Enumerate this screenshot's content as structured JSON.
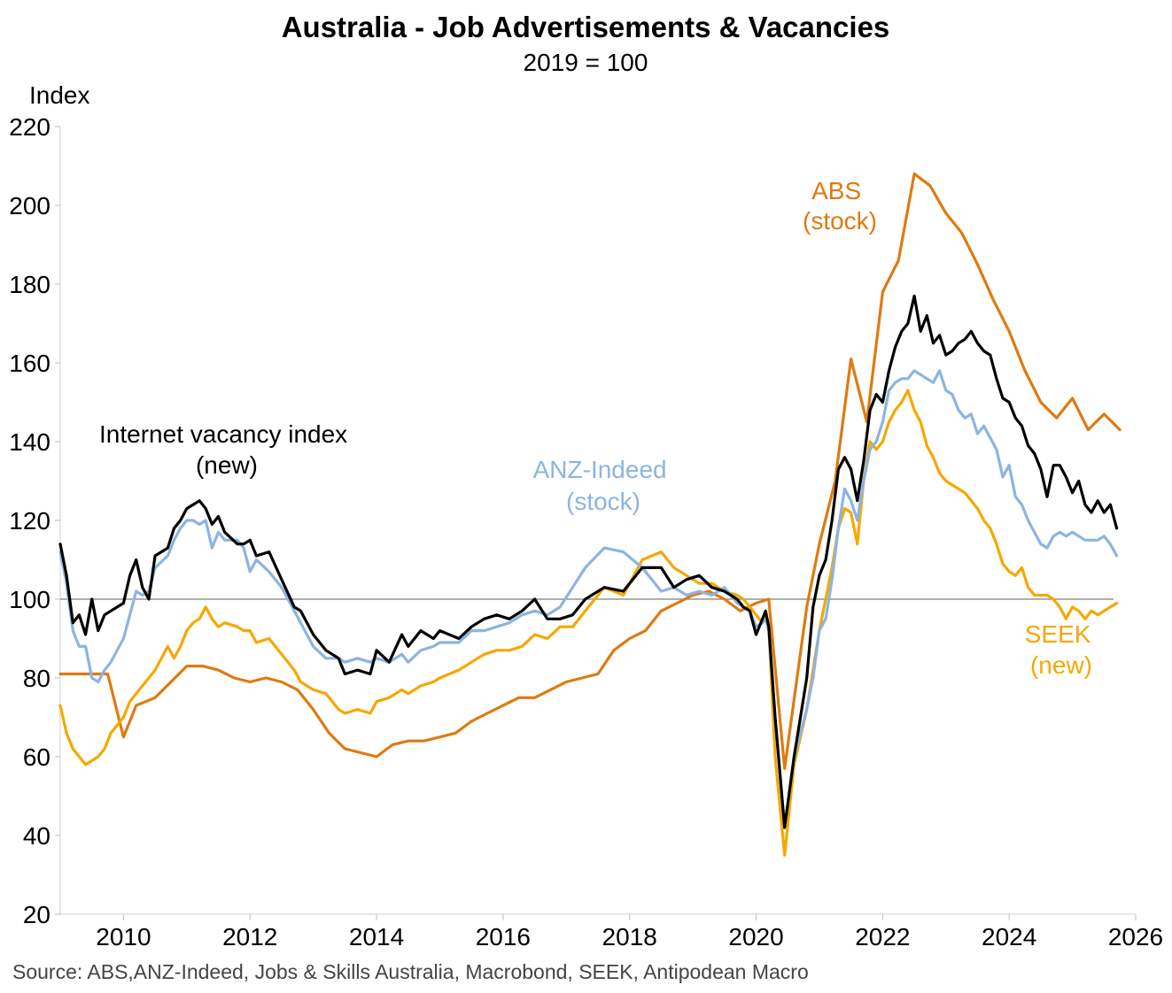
{
  "chart_data": {
    "type": "line",
    "title": "Australia - Job Advertisements & Vacancies",
    "subtitle": "2019 = 100",
    "ylabel": "Index",
    "ylim": [
      20,
      220
    ],
    "yticks": [
      220,
      200,
      180,
      160,
      140,
      120,
      100,
      80,
      60,
      40,
      20
    ],
    "xlim": [
      2009.0,
      2026.0
    ],
    "xticks": [
      2010,
      2012,
      2014,
      2016,
      2018,
      2020,
      2022,
      2024,
      2026
    ],
    "reference_line": 100,
    "source": "Source: ABS,ANZ-Indeed, Jobs & Skills Australia, Macrobond, SEEK, Antipodean Macro",
    "series": [
      {
        "name": "Internet vacancy index (new)",
        "label_lines": [
          "Internet vacancy index",
          "(new)"
        ],
        "color": "#000000",
        "x": [
          2009.0,
          2009.1,
          2009.2,
          2009.3,
          2009.4,
          2009.5,
          2009.6,
          2009.7,
          2009.8,
          2010.0,
          2010.1,
          2010.2,
          2010.3,
          2010.4,
          2010.5,
          2010.7,
          2010.8,
          2010.9,
          2011.0,
          2011.1,
          2011.2,
          2011.3,
          2011.4,
          2011.5,
          2011.6,
          2011.8,
          2011.9,
          2012.0,
          2012.1,
          2012.3,
          2012.5,
          2012.7,
          2012.8,
          2013.0,
          2013.2,
          2013.4,
          2013.5,
          2013.7,
          2013.9,
          2014.0,
          2014.2,
          2014.4,
          2014.5,
          2014.7,
          2014.9,
          2015.0,
          2015.3,
          2015.5,
          2015.7,
          2015.9,
          2016.1,
          2016.3,
          2016.5,
          2016.7,
          2016.9,
          2017.1,
          2017.3,
          2017.6,
          2017.9,
          2018.2,
          2018.5,
          2018.7,
          2018.9,
          2019.1,
          2019.3,
          2019.5,
          2019.7,
          2019.8,
          2019.9,
          2020.0,
          2020.1,
          2020.15,
          2020.2,
          2020.3,
          2020.45,
          2020.6,
          2020.8,
          2020.9,
          2021.0,
          2021.1,
          2021.2,
          2021.3,
          2021.4,
          2021.5,
          2021.6,
          2021.7,
          2021.8,
          2021.9,
          2022.0,
          2022.1,
          2022.2,
          2022.3,
          2022.4,
          2022.5,
          2022.6,
          2022.7,
          2022.8,
          2022.9,
          2023.0,
          2023.1,
          2023.2,
          2023.3,
          2023.4,
          2023.5,
          2023.6,
          2023.7,
          2023.8,
          2023.9,
          2024.0,
          2024.1,
          2024.2,
          2024.3,
          2024.4,
          2024.5,
          2024.6,
          2024.7,
          2024.8,
          2024.9,
          2025.0,
          2025.1,
          2025.2,
          2025.3,
          2025.4,
          2025.5,
          2025.6,
          2025.7
        ],
        "values": [
          114,
          106,
          94,
          96,
          91,
          100,
          92,
          96,
          97,
          99,
          106,
          110,
          103,
          100,
          111,
          113,
          118,
          120,
          123,
          124,
          125,
          123,
          119,
          121,
          117,
          114,
          114,
          115,
          111,
          112,
          105,
          98,
          97,
          91,
          87,
          85,
          81,
          82,
          81,
          87,
          84,
          91,
          88,
          92,
          90,
          92,
          90,
          93,
          95,
          96,
          95,
          97,
          100,
          95,
          95,
          96,
          100,
          103,
          102,
          108,
          108,
          103,
          105,
          106,
          103,
          102,
          100,
          98,
          97,
          91,
          95,
          97,
          93,
          70,
          42,
          60,
          80,
          98,
          106,
          110,
          120,
          133,
          136,
          133,
          125,
          135,
          148,
          152,
          150,
          158,
          164,
          168,
          170,
          177,
          168,
          172,
          165,
          167,
          162,
          163,
          165,
          166,
          168,
          165,
          163,
          162,
          156,
          151,
          150,
          146,
          144,
          139,
          137,
          133,
          126,
          134,
          134,
          131,
          127,
          130,
          124,
          122,
          125,
          122,
          124,
          118
        ]
      },
      {
        "name": "ANZ-Indeed (stock)",
        "label_lines": [
          "ANZ-Indeed",
          "(stock)"
        ],
        "color": "#8cb4e2",
        "x": [
          2009.0,
          2009.1,
          2009.2,
          2009.3,
          2009.4,
          2009.5,
          2009.6,
          2009.7,
          2009.8,
          2010.0,
          2010.1,
          2010.2,
          2010.3,
          2010.4,
          2010.5,
          2010.7,
          2010.8,
          2010.9,
          2011.0,
          2011.1,
          2011.2,
          2011.3,
          2011.4,
          2011.5,
          2011.6,
          2011.8,
          2011.9,
          2012.0,
          2012.1,
          2012.3,
          2012.5,
          2012.7,
          2012.8,
          2013.0,
          2013.2,
          2013.4,
          2013.5,
          2013.7,
          2013.9,
          2014.0,
          2014.2,
          2014.4,
          2014.5,
          2014.7,
          2014.9,
          2015.0,
          2015.3,
          2015.5,
          2015.7,
          2015.9,
          2016.1,
          2016.3,
          2016.5,
          2016.7,
          2016.9,
          2017.1,
          2017.3,
          2017.6,
          2017.9,
          2018.2,
          2018.5,
          2018.7,
          2018.9,
          2019.1,
          2019.3,
          2019.5,
          2019.7,
          2019.8,
          2019.9,
          2020.0,
          2020.1,
          2020.15,
          2020.2,
          2020.3,
          2020.45,
          2020.6,
          2020.8,
          2020.9,
          2021.0,
          2021.1,
          2021.2,
          2021.3,
          2021.4,
          2021.5,
          2021.6,
          2021.7,
          2021.8,
          2021.9,
          2022.0,
          2022.1,
          2022.2,
          2022.3,
          2022.4,
          2022.5,
          2022.6,
          2022.7,
          2022.8,
          2022.9,
          2023.0,
          2023.1,
          2023.2,
          2023.3,
          2023.4,
          2023.5,
          2023.6,
          2023.7,
          2023.8,
          2023.9,
          2024.0,
          2024.1,
          2024.2,
          2024.3,
          2024.4,
          2024.5,
          2024.6,
          2024.7,
          2024.8,
          2024.9,
          2025.0,
          2025.1,
          2025.2,
          2025.3,
          2025.4,
          2025.5,
          2025.6,
          2025.7
        ],
        "values": [
          112,
          104,
          92,
          88,
          88,
          80,
          79,
          82,
          84,
          90,
          96,
          102,
          101,
          102,
          108,
          111,
          115,
          118,
          120,
          120,
          119,
          120,
          113,
          117,
          115,
          115,
          113,
          107,
          110,
          107,
          103,
          97,
          94,
          88,
          85,
          85,
          84,
          85,
          84,
          85,
          84,
          86,
          84,
          87,
          88,
          89,
          89,
          92,
          92,
          93,
          94,
          96,
          97,
          96,
          98,
          103,
          108,
          113,
          112,
          108,
          102,
          103,
          101,
          102,
          101,
          103,
          99,
          98,
          97,
          93,
          94,
          95,
          92,
          70,
          42,
          60,
          72,
          80,
          92,
          95,
          105,
          118,
          128,
          125,
          120,
          130,
          138,
          140,
          145,
          153,
          155,
          156,
          156,
          158,
          157,
          156,
          155,
          158,
          153,
          152,
          148,
          146,
          147,
          142,
          144,
          141,
          138,
          131,
          134,
          126,
          124,
          120,
          117,
          114,
          113,
          116,
          117,
          116,
          117,
          116,
          115,
          115,
          115,
          116,
          114,
          111
        ]
      },
      {
        "name": "SEEK (new)",
        "label_lines": [
          "SEEK",
          "(new)"
        ],
        "color": "#f5a800",
        "x": [
          2009.0,
          2009.1,
          2009.2,
          2009.3,
          2009.4,
          2009.5,
          2009.6,
          2009.7,
          2009.8,
          2010.0,
          2010.1,
          2010.2,
          2010.3,
          2010.4,
          2010.5,
          2010.7,
          2010.8,
          2010.9,
          2011.0,
          2011.1,
          2011.2,
          2011.3,
          2011.4,
          2011.5,
          2011.6,
          2011.8,
          2011.9,
          2012.0,
          2012.1,
          2012.3,
          2012.5,
          2012.7,
          2012.8,
          2013.0,
          2013.2,
          2013.4,
          2013.5,
          2013.7,
          2013.9,
          2014.0,
          2014.2,
          2014.4,
          2014.5,
          2014.7,
          2014.9,
          2015.0,
          2015.3,
          2015.5,
          2015.7,
          2015.9,
          2016.1,
          2016.3,
          2016.5,
          2016.7,
          2016.9,
          2017.1,
          2017.3,
          2017.6,
          2017.9,
          2018.2,
          2018.5,
          2018.7,
          2018.9,
          2019.1,
          2019.3,
          2019.5,
          2019.7,
          2019.8,
          2019.9,
          2020.0,
          2020.1,
          2020.15,
          2020.2,
          2020.3,
          2020.45,
          2020.6,
          2020.8,
          2020.9,
          2021.0,
          2021.1,
          2021.2,
          2021.3,
          2021.4,
          2021.5,
          2021.6,
          2021.7,
          2021.8,
          2021.9,
          2022.0,
          2022.1,
          2022.2,
          2022.3,
          2022.4,
          2022.5,
          2022.6,
          2022.7,
          2022.8,
          2022.9,
          2023.0,
          2023.1,
          2023.2,
          2023.3,
          2023.4,
          2023.5,
          2023.6,
          2023.7,
          2023.8,
          2023.9,
          2024.0,
          2024.1,
          2024.2,
          2024.3,
          2024.4,
          2024.5,
          2024.6,
          2024.7,
          2024.8,
          2024.9,
          2025.0,
          2025.1,
          2025.2,
          2025.3,
          2025.4,
          2025.5,
          2025.6,
          2025.7
        ],
        "values": [
          73,
          66,
          62,
          60,
          58,
          59,
          60,
          62,
          66,
          70,
          74,
          76,
          78,
          80,
          82,
          88,
          85,
          88,
          92,
          94,
          95,
          98,
          95,
          93,
          94,
          93,
          92,
          92,
          89,
          90,
          86,
          82,
          79,
          77,
          76,
          72,
          71,
          72,
          71,
          74,
          75,
          77,
          76,
          78,
          79,
          80,
          82,
          84,
          86,
          87,
          87,
          88,
          91,
          90,
          93,
          93,
          97,
          103,
          101,
          110,
          112,
          108,
          106,
          104,
          104,
          102,
          101,
          100,
          98,
          96,
          94,
          96,
          93,
          60,
          35,
          58,
          72,
          82,
          92,
          100,
          108,
          118,
          123,
          122,
          114,
          130,
          140,
          138,
          140,
          145,
          148,
          150,
          153,
          148,
          145,
          139,
          136,
          132,
          130,
          129,
          128,
          127,
          125,
          123,
          120,
          118,
          114,
          109,
          107,
          106,
          108,
          103,
          101,
          101,
          101,
          100,
          98,
          95,
          98,
          97,
          95,
          97,
          96,
          97,
          98,
          99
        ]
      },
      {
        "name": "ABS (stock)",
        "label_lines": [
          "ABS",
          "(stock)"
        ],
        "color": "#e07a10",
        "x": [
          2009.0,
          2009.5,
          2009.75,
          2010.0,
          2010.2,
          2010.5,
          2010.75,
          2011.0,
          2011.25,
          2011.5,
          2011.75,
          2012.0,
          2012.25,
          2012.5,
          2012.75,
          2013.0,
          2013.25,
          2013.5,
          2013.75,
          2014.0,
          2014.25,
          2014.5,
          2014.75,
          2015.0,
          2015.25,
          2015.5,
          2015.75,
          2016.0,
          2016.25,
          2016.5,
          2016.75,
          2017.0,
          2017.25,
          2017.5,
          2017.75,
          2018.0,
          2018.25,
          2018.5,
          2018.75,
          2019.0,
          2019.25,
          2019.5,
          2019.75,
          2020.0,
          2020.2,
          2020.45,
          2020.8,
          2021.0,
          2021.25,
          2021.5,
          2021.75,
          2022.0,
          2022.25,
          2022.5,
          2022.75,
          2023.0,
          2023.25,
          2023.5,
          2023.75,
          2024.0,
          2024.25,
          2024.5,
          2024.75,
          2025.0,
          2025.25,
          2025.5,
          2025.75
        ],
        "values": [
          81,
          81,
          81,
          65,
          73,
          75,
          79,
          83,
          83,
          82,
          80,
          79,
          80,
          79,
          77,
          72,
          66,
          62,
          61,
          60,
          63,
          64,
          64,
          65,
          66,
          69,
          71,
          73,
          75,
          75,
          77,
          79,
          80,
          81,
          87,
          90,
          92,
          97,
          99,
          101,
          102,
          100,
          97,
          99,
          100,
          57,
          98,
          114,
          130,
          161,
          145,
          178,
          186,
          208,
          205,
          198,
          193,
          185,
          176,
          168,
          158,
          150,
          146,
          151,
          143,
          147,
          143
        ]
      }
    ]
  }
}
